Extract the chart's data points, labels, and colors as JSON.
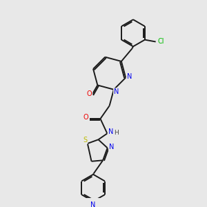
{
  "background_color": "#e8e8e8",
  "bond_color": "#1a1a1a",
  "atom_colors": {
    "N": "#0000ee",
    "O": "#ee0000",
    "S": "#bbbb00",
    "Cl": "#00bb00",
    "C": "#1a1a1a",
    "H": "#444444"
  },
  "figsize": [
    3.0,
    3.0
  ],
  "dpi": 100
}
